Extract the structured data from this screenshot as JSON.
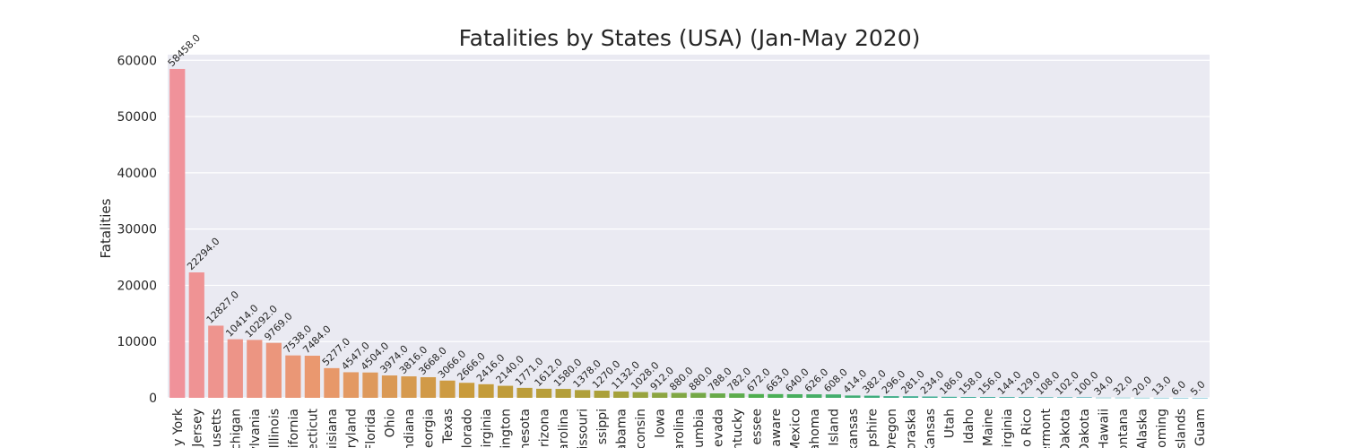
{
  "chart_data": {
    "type": "bar",
    "title": "Fatalities by States (USA) (Jan-May 2020)",
    "xlabel": "",
    "ylabel": "Fatalities",
    "ylim": [
      0,
      61000
    ],
    "yticks": [
      0,
      10000,
      20000,
      30000,
      40000,
      50000,
      60000
    ],
    "grid": true,
    "categories": [
      "y York",
      "Jersey",
      "usetts",
      "chigan",
      "sylvania",
      "Illinois",
      "lifornia",
      "ecticut",
      "uisiana",
      "aryland",
      "Florida",
      "Ohio",
      "ndiana",
      "eorgia",
      "Texas",
      "lorado",
      "irginia",
      "ington",
      "nesota",
      "rizona",
      "arolina",
      "issouri",
      "ssippi",
      "abama",
      "consin",
      "Iowa",
      "arolina",
      "umbia",
      "evada",
      "ntucky",
      "essee",
      "aware",
      "Mexico",
      "ahoma",
      "Island",
      "kansas",
      "pshire",
      "Oregon",
      "oraska",
      "Kansas",
      "Utah",
      "Idaho",
      "Maine",
      "irginia",
      "o Rico",
      "ermont",
      "Dakota",
      "Dakota",
      "Hawaii",
      "ontana",
      "Alaska",
      "yoming",
      "Islands",
      "Guam"
    ],
    "values": [
      58458.0,
      22294.0,
      12827.0,
      10414.0,
      10292.0,
      9769.0,
      7538.0,
      7484.0,
      5277.0,
      4547.0,
      4504.0,
      3974.0,
      3816.0,
      3668.0,
      3066.0,
      2666.0,
      2416.0,
      2140.0,
      1771.0,
      1612.0,
      1580.0,
      1378.0,
      1270.0,
      1132.0,
      1028.0,
      912.0,
      880.0,
      880.0,
      788.0,
      782.0,
      672.0,
      663.0,
      640.0,
      626.0,
      608.0,
      414.0,
      382.0,
      296.0,
      281.0,
      234.0,
      186.0,
      158.0,
      156.0,
      144.0,
      129.0,
      108.0,
      102.0,
      100.0,
      34.0,
      32.0,
      20.0,
      13.0,
      6.0,
      5.0
    ],
    "value_labels": [
      "58458.0",
      "22294.0",
      "12827.0",
      "10414.0",
      "10292.0",
      "9769.0",
      "7538.0",
      "7484.0",
      "5277.0",
      "4547.0",
      "4504.0",
      "3974.0",
      "3816.0",
      "3668.0",
      "3066.0",
      "2666.0",
      "2416.0",
      "2140.0",
      "1771.0",
      "1612.0",
      "1580.0",
      "1378.0",
      "1270.0",
      "1132.0",
      "1028.0",
      "912.0",
      "880.0",
      "880.0",
      "788.0",
      "782.0",
      "672.0",
      "663.0",
      "640.0",
      "626.0",
      "608.0",
      "414.0",
      "382.0",
      "296.0",
      "281.0",
      "234.0",
      "186.0",
      "158.0",
      "156.0",
      "144.0",
      "129.0",
      "108.0",
      "102.0",
      "100.0",
      "34.0",
      "32.0",
      "20.0",
      "13.0",
      "6.0",
      "5.0"
    ],
    "colors": {
      "plot_background": "#eaeaf2",
      "grid": "#ffffff",
      "text": "#262626",
      "palette": [
        "#f0929a",
        "#e9986c",
        "#c89b3a",
        "#a8a03a",
        "#4caf50",
        "#3aac8c",
        "#38a8a8",
        "#3aa3c4"
      ]
    }
  }
}
